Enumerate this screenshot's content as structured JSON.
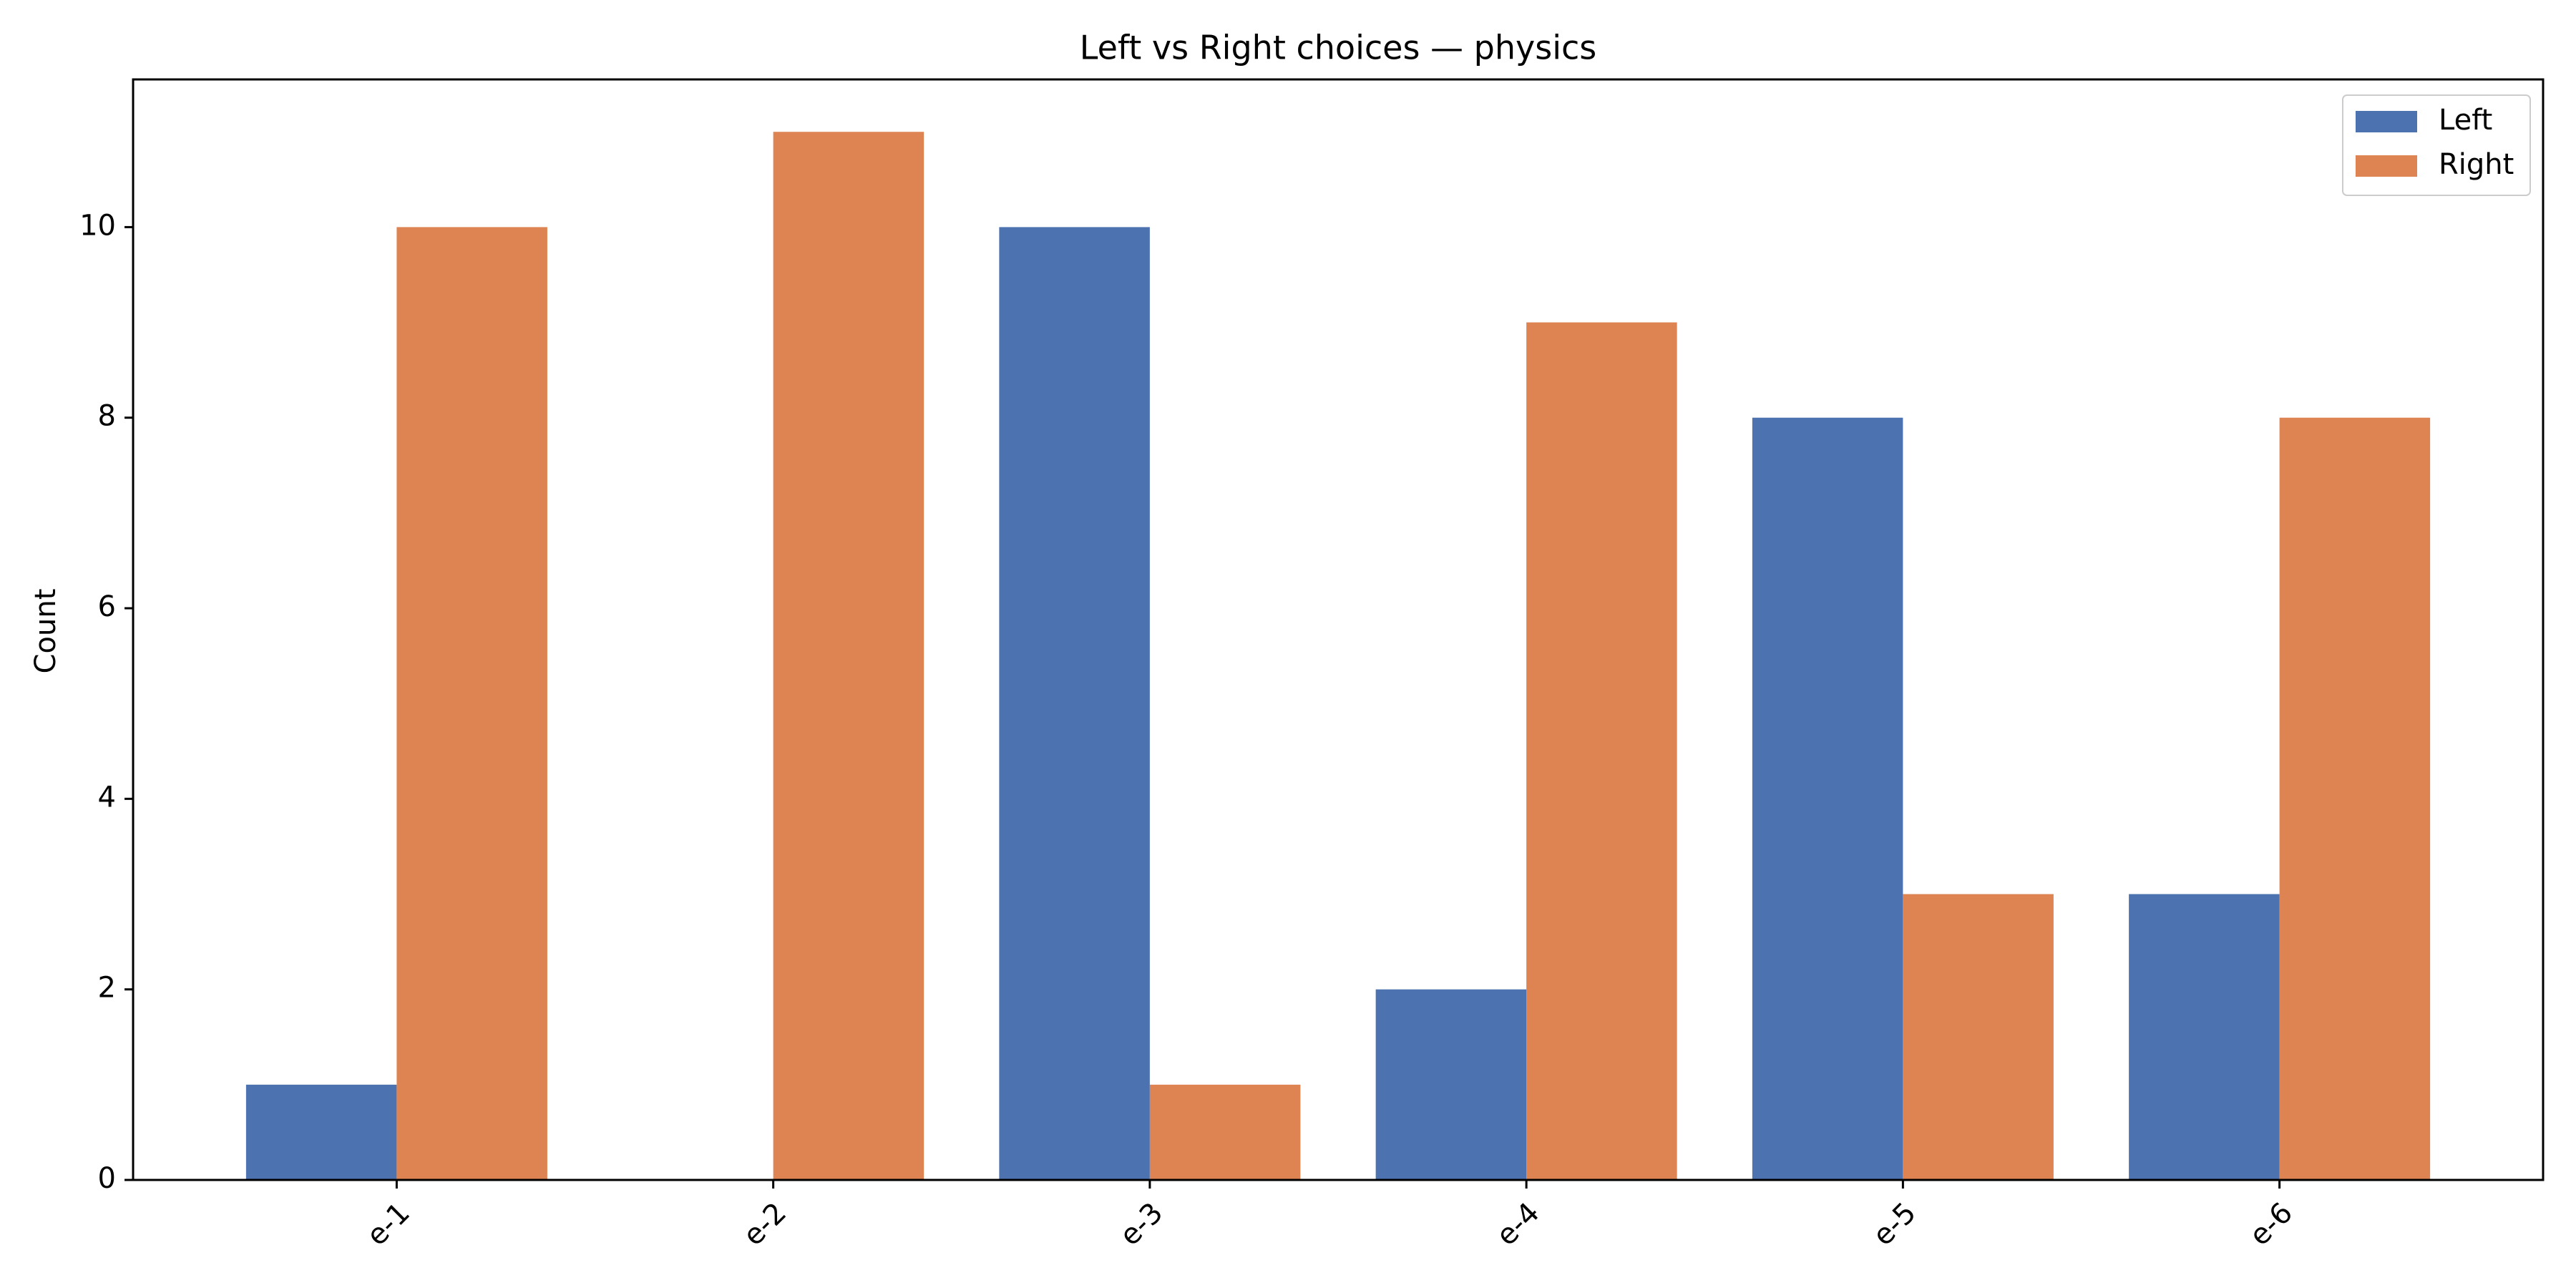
{
  "chart_data": {
    "type": "bar",
    "title": "Left vs Right choices — physics",
    "xlabel": "",
    "ylabel": "Count",
    "categories": [
      "e-1",
      "e-2",
      "e-3",
      "e-4",
      "e-5",
      "e-6"
    ],
    "series": [
      {
        "name": "Left",
        "color": "#4c72b0",
        "values": [
          1,
          0,
          10,
          2,
          8,
          3
        ]
      },
      {
        "name": "Right",
        "color": "#dd8452",
        "values": [
          10,
          11,
          1,
          9,
          3,
          8
        ]
      }
    ],
    "ylim": [
      0,
      11.55
    ],
    "yticks": [
      0,
      2,
      4,
      6,
      8,
      10
    ],
    "grid": false,
    "legend_position": "top-right"
  }
}
